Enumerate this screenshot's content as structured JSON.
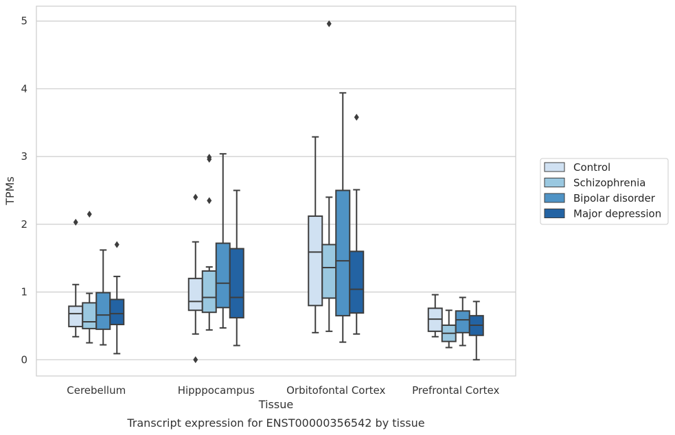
{
  "caption": "Transcript expression for ENST00000356542 by tissue",
  "chart_data": {
    "type": "box",
    "xlabel": "Tissue",
    "ylabel": "TPMs",
    "ylim": [
      -0.24,
      5.22
    ],
    "yticks": [
      0,
      1,
      2,
      3,
      4,
      5
    ],
    "grid": true,
    "legend_position": "right",
    "categories": [
      "Cerebellum",
      "Hipppocampus",
      "Orbitofontal Cortex",
      "Prefrontal Cortex"
    ],
    "series": [
      {
        "name": "Control",
        "color": "#d0e1f2",
        "boxes": [
          {
            "whisker_low": 0.34,
            "q1": 0.49,
            "median": 0.68,
            "q3": 0.79,
            "whisker_high": 1.11,
            "outliers": [
              2.03
            ]
          },
          {
            "whisker_low": 0.38,
            "q1": 0.73,
            "median": 0.86,
            "q3": 1.2,
            "whisker_high": 1.74,
            "outliers": [
              2.4,
              0.0
            ]
          },
          {
            "whisker_low": 0.4,
            "q1": 0.8,
            "median": 1.59,
            "q3": 2.12,
            "whisker_high": 3.29,
            "outliers": []
          },
          {
            "whisker_low": 0.34,
            "q1": 0.42,
            "median": 0.6,
            "q3": 0.76,
            "whisker_high": 0.96,
            "outliers": []
          }
        ]
      },
      {
        "name": "Schizophrenia",
        "color": "#9ac8e0",
        "boxes": [
          {
            "whisker_low": 0.25,
            "q1": 0.46,
            "median": 0.56,
            "q3": 0.84,
            "whisker_high": 0.98,
            "outliers": [
              2.15
            ]
          },
          {
            "whisker_low": 0.44,
            "q1": 0.7,
            "median": 0.92,
            "q3": 1.31,
            "whisker_high": 1.37,
            "outliers": [
              2.35,
              2.96,
              2.99
            ]
          },
          {
            "whisker_low": 0.42,
            "q1": 0.91,
            "median": 1.36,
            "q3": 1.7,
            "whisker_high": 2.4,
            "outliers": [
              4.96
            ]
          },
          {
            "whisker_low": 0.18,
            "q1": 0.27,
            "median": 0.39,
            "q3": 0.51,
            "whisker_high": 0.73,
            "outliers": []
          }
        ]
      },
      {
        "name": "Bipolar disorder",
        "color": "#4f93c5",
        "boxes": [
          {
            "whisker_low": 0.22,
            "q1": 0.45,
            "median": 0.66,
            "q3": 0.99,
            "whisker_high": 1.62,
            "outliers": []
          },
          {
            "whisker_low": 0.47,
            "q1": 0.77,
            "median": 1.13,
            "q3": 1.72,
            "whisker_high": 3.04,
            "outliers": []
          },
          {
            "whisker_low": 0.26,
            "q1": 0.65,
            "median": 1.46,
            "q3": 2.5,
            "whisker_high": 3.94,
            "outliers": []
          },
          {
            "whisker_low": 0.21,
            "q1": 0.4,
            "median": 0.59,
            "q3": 0.72,
            "whisker_high": 0.92,
            "outliers": []
          }
        ]
      },
      {
        "name": "Major depression",
        "color": "#2363a3",
        "boxes": [
          {
            "whisker_low": 0.09,
            "q1": 0.52,
            "median": 0.68,
            "q3": 0.89,
            "whisker_high": 1.23,
            "outliers": [
              1.7
            ]
          },
          {
            "whisker_low": 0.21,
            "q1": 0.62,
            "median": 0.92,
            "q3": 1.64,
            "whisker_high": 2.5,
            "outliers": []
          },
          {
            "whisker_low": 0.38,
            "q1": 0.69,
            "median": 1.04,
            "q3": 1.6,
            "whisker_high": 2.51,
            "outliers": [
              3.58
            ]
          },
          {
            "whisker_low": 0.0,
            "q1": 0.36,
            "median": 0.51,
            "q3": 0.65,
            "whisker_high": 0.86,
            "outliers": []
          }
        ]
      }
    ]
  }
}
